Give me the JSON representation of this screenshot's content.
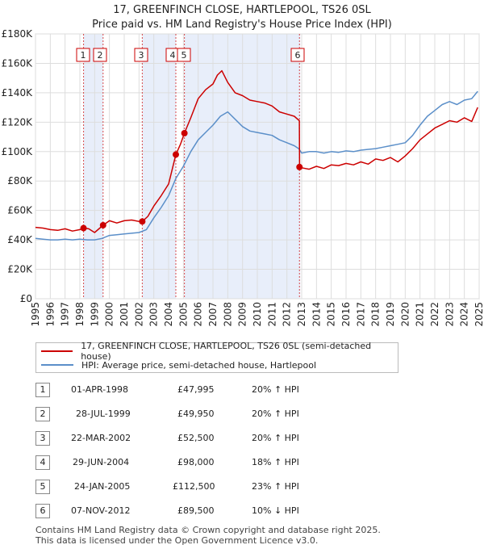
{
  "chart_data": {
    "type": "line",
    "title": "17, GREENFINCH CLOSE, HARTLEPOOL, TS26 0SL",
    "subtitle": "Price paid vs. HM Land Registry's House Price Index (HPI)",
    "xlim": [
      1995,
      2025
    ],
    "ylim": [
      0,
      180000
    ],
    "x_ticks": [
      "1995",
      "1996",
      "1997",
      "1998",
      "1999",
      "2000",
      "2001",
      "2002",
      "2003",
      "2004",
      "2005",
      "2006",
      "2007",
      "2008",
      "2009",
      "2010",
      "2011",
      "2012",
      "2013",
      "2014",
      "2015",
      "2016",
      "2017",
      "2018",
      "2019",
      "2020",
      "2021",
      "2022",
      "2023",
      "2024",
      "2025"
    ],
    "y_ticks": [
      {
        "value": 0,
        "label": "£0"
      },
      {
        "value": 20000,
        "label": "£20K"
      },
      {
        "value": 40000,
        "label": "£40K"
      },
      {
        "value": 60000,
        "label": "£60K"
      },
      {
        "value": 80000,
        "label": "£80K"
      },
      {
        "value": 100000,
        "label": "£100K"
      },
      {
        "value": 120000,
        "label": "£120K"
      },
      {
        "value": 140000,
        "label": "£140K"
      },
      {
        "value": 160000,
        "label": "£160K"
      },
      {
        "value": 180000,
        "label": "£180K"
      }
    ],
    "grid": true,
    "series": [
      {
        "name": "17, GREENFINCH CLOSE, HARTLEPOOL, TS26 0SL (semi-detached house)",
        "color": "#cc0000",
        "x": [
          1995.0,
          1995.5,
          1996.0,
          1996.5,
          1997.0,
          1997.5,
          1998.0,
          1998.25,
          1998.6,
          1999.0,
          1999.57,
          2000.0,
          2000.5,
          2001.0,
          2001.5,
          2002.0,
          2002.22,
          2002.6,
          2003.0,
          2003.5,
          2004.0,
          2004.49,
          2004.8,
          2005.07,
          2005.5,
          2006.0,
          2006.5,
          2007.0,
          2007.3,
          2007.6,
          2008.0,
          2008.5,
          2009.0,
          2009.5,
          2010.0,
          2010.5,
          2011.0,
          2011.5,
          2012.0,
          2012.5,
          2012.84,
          2012.86,
          2013.0,
          2013.5,
          2014.0,
          2014.5,
          2015.0,
          2015.5,
          2016.0,
          2016.5,
          2017.0,
          2017.5,
          2018.0,
          2018.5,
          2019.0,
          2019.5,
          2020.0,
          2020.5,
          2021.0,
          2021.5,
          2022.0,
          2022.5,
          2023.0,
          2023.5,
          2024.0,
          2024.5,
          2024.9
        ],
        "y": [
          48500,
          48000,
          47000,
          46500,
          47500,
          46000,
          47000,
          47995,
          47500,
          45000,
          49950,
          53000,
          51500,
          53000,
          53500,
          52500,
          52500,
          56000,
          63000,
          70000,
          78000,
          98000,
          105000,
          112500,
          123000,
          136000,
          142000,
          146000,
          152000,
          155000,
          147000,
          140000,
          138000,
          135000,
          134000,
          133000,
          131000,
          127000,
          125500,
          124000,
          121000,
          89500,
          89000,
          88000,
          90000,
          88500,
          91000,
          90500,
          92000,
          91000,
          93000,
          91500,
          95000,
          94000,
          96000,
          93000,
          97000,
          102000,
          108000,
          112000,
          116000,
          118500,
          121000,
          120000,
          123000,
          120500,
          130000
        ]
      },
      {
        "name": "HPI: Average price, semi-detached house, Hartlepool",
        "color": "#5b8fc9",
        "x": [
          1995.0,
          1995.5,
          1996.0,
          1996.5,
          1997.0,
          1997.5,
          1998.0,
          1998.5,
          1999.0,
          1999.5,
          2000.0,
          2000.5,
          2001.0,
          2001.5,
          2002.0,
          2002.5,
          2003.0,
          2003.5,
          2004.0,
          2004.5,
          2005.0,
          2005.5,
          2006.0,
          2006.5,
          2007.0,
          2007.5,
          2008.0,
          2008.5,
          2009.0,
          2009.5,
          2010.0,
          2010.5,
          2011.0,
          2011.5,
          2012.0,
          2012.5,
          2012.8,
          2013.0,
          2013.5,
          2014.0,
          2014.5,
          2015.0,
          2015.5,
          2016.0,
          2016.5,
          2017.0,
          2017.5,
          2018.0,
          2018.5,
          2019.0,
          2019.5,
          2020.0,
          2020.5,
          2021.0,
          2021.5,
          2022.0,
          2022.5,
          2023.0,
          2023.5,
          2024.0,
          2024.5,
          2024.9
        ],
        "y": [
          41000,
          40500,
          40000,
          40000,
          40500,
          40000,
          40500,
          40000,
          40000,
          41000,
          43000,
          43500,
          44000,
          44500,
          45000,
          47000,
          55000,
          62000,
          70000,
          82000,
          90000,
          100000,
          108000,
          113000,
          118000,
          124000,
          127000,
          122000,
          117000,
          114000,
          113000,
          112000,
          111000,
          108000,
          106000,
          104000,
          102000,
          99000,
          100000,
          100000,
          99000,
          100000,
          99500,
          100500,
          100000,
          101000,
          101500,
          102000,
          103000,
          104000,
          105000,
          106000,
          111000,
          118000,
          124000,
          128000,
          132000,
          134000,
          132000,
          135000,
          136000,
          141000
        ]
      }
    ],
    "sales": [
      {
        "n": "1",
        "x": 1998.25,
        "y": 47995
      },
      {
        "n": "2",
        "x": 1999.57,
        "y": 49950
      },
      {
        "n": "3",
        "x": 2002.22,
        "y": 52500
      },
      {
        "n": "4",
        "x": 2004.49,
        "y": 98000
      },
      {
        "n": "5",
        "x": 2005.07,
        "y": 112500
      },
      {
        "n": "6",
        "x": 2012.85,
        "y": 89500
      }
    ]
  },
  "legend": {
    "property_label": "17, GREENFINCH CLOSE, HARTLEPOOL, TS26 0SL (semi-detached house)",
    "hpi_label": "HPI: Average price, semi-detached house, Hartlepool"
  },
  "transactions": [
    {
      "n": "1",
      "date": "01-APR-1998",
      "price": "£47,995",
      "hpi": "20% ↑ HPI"
    },
    {
      "n": "2",
      "date": "28-JUL-1999",
      "price": "£49,950",
      "hpi": "20% ↑ HPI"
    },
    {
      "n": "3",
      "date": "22-MAR-2002",
      "price": "£52,500",
      "hpi": "20% ↑ HPI"
    },
    {
      "n": "4",
      "date": "29-JUN-2004",
      "price": "£98,000",
      "hpi": "18% ↑ HPI"
    },
    {
      "n": "5",
      "date": "24-JAN-2005",
      "price": "£112,500",
      "hpi": "23% ↑ HPI"
    },
    {
      "n": "6",
      "date": "07-NOV-2012",
      "price": "£89,500",
      "hpi": "10% ↓ HPI"
    }
  ],
  "footer": {
    "line1": "Contains HM Land Registry data © Crown copyright and database right 2025.",
    "line2": "This data is licensed under the Open Government Licence v3.0."
  }
}
